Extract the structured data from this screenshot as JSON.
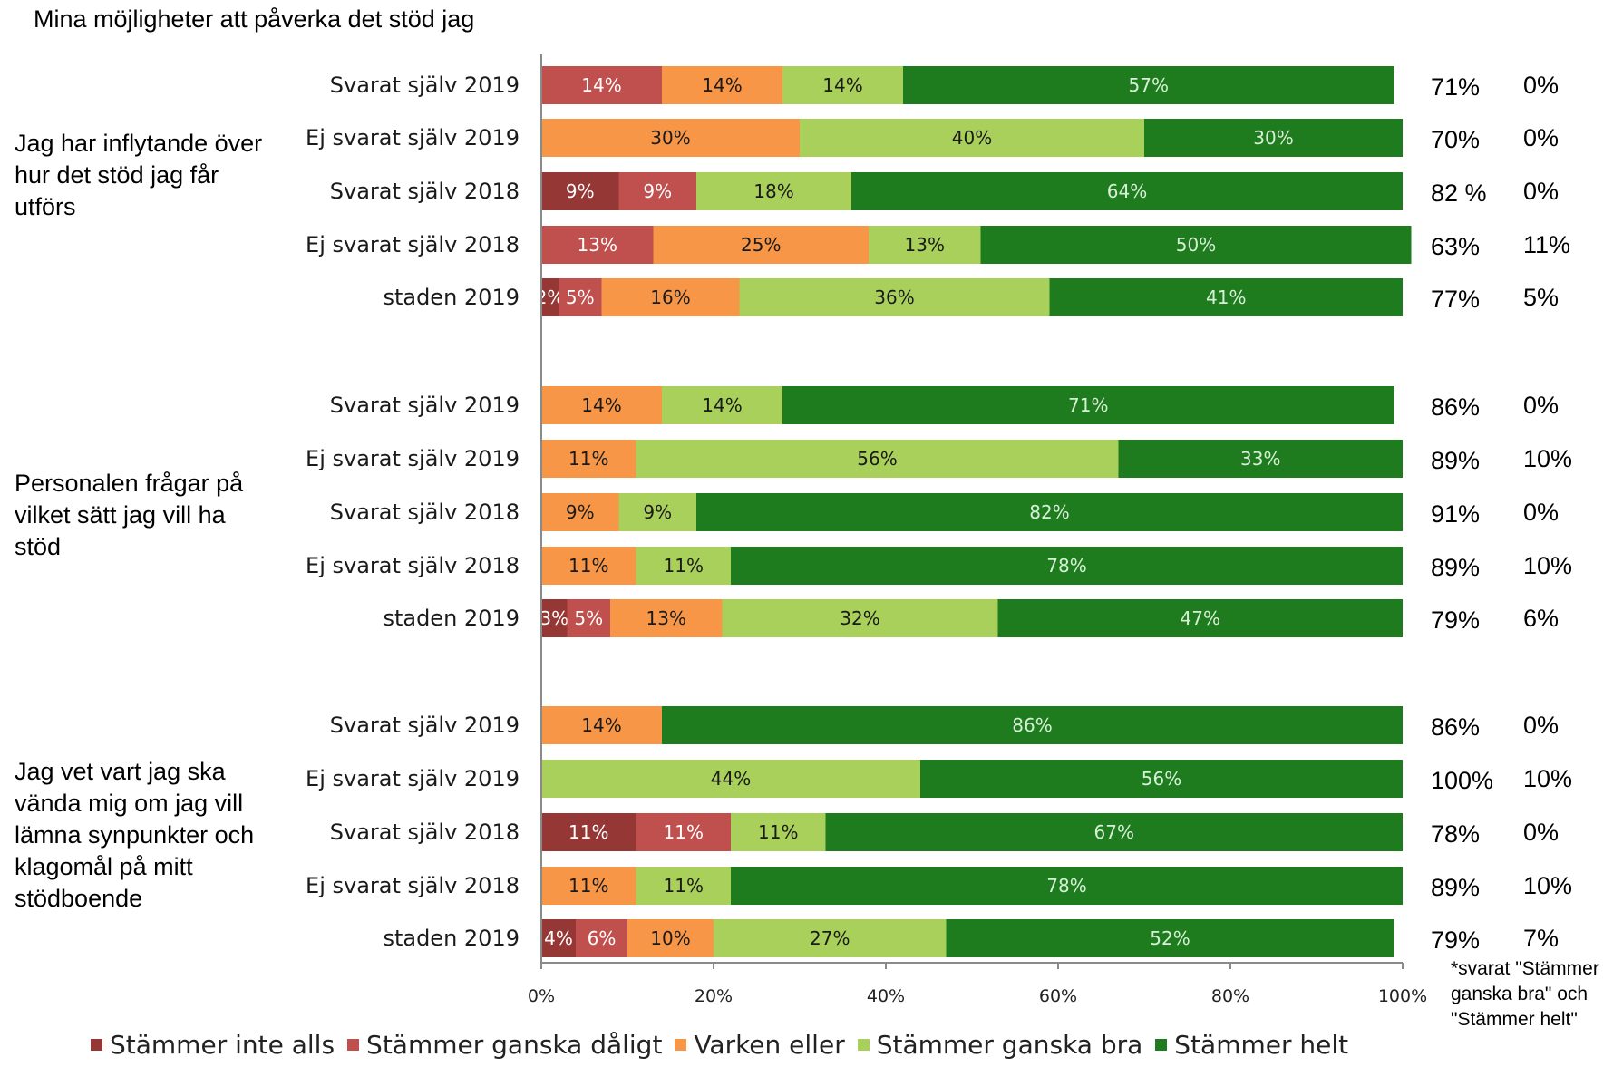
{
  "chart_data": {
    "type": "bar",
    "orientation": "horizontal-stacked",
    "title": "Mina möjligheter att påverka det stöd jag",
    "xlim": [
      0,
      100
    ],
    "x_ticks": [
      "0%",
      "20%",
      "40%",
      "60%",
      "80%",
      "100%"
    ],
    "legend_position": "bottom",
    "series": [
      {
        "name": "Stämmer inte alls",
        "color": "#953735"
      },
      {
        "name": "Stämmer ganska dåligt",
        "color": "#c0504d"
      },
      {
        "name": "Varken eller",
        "color": "#f79646"
      },
      {
        "name": "Stämmer ganska bra",
        "color": "#a9d05a"
      },
      {
        "name": "Stämmer helt",
        "color": "#1e7b1e"
      }
    ],
    "groups": [
      {
        "label": "Jag har inflytande över hur det stöd jag får utförs",
        "bars": [
          {
            "label": "Svarat själv 2019",
            "values": [
              0,
              14,
              14,
              14,
              57
            ],
            "value_labels": [
              "",
              "14%",
              "14%",
              "14%",
              "57%"
            ],
            "col1": "71%",
            "col2": "0%"
          },
          {
            "label": "Ej svarat själv 2019",
            "values": [
              0,
              0,
              30,
              40,
              30
            ],
            "value_labels": [
              "",
              "",
              "30%",
              "40%",
              "30%"
            ],
            "col1": "70%",
            "col2": "0%"
          },
          {
            "label": "Svarat själv 2018",
            "values": [
              9,
              9,
              0,
              18,
              64
            ],
            "value_labels": [
              "9%",
              "9%",
              "",
              "18%",
              "64%"
            ],
            "col1": "82 %",
            "col2": "0%"
          },
          {
            "label": "Ej svarat själv 2018",
            "values": [
              0,
              13,
              25,
              13,
              50
            ],
            "value_labels": [
              "",
              "13%",
              "25%",
              "13%",
              "50%"
            ],
            "col1": "63%",
            "col2": "11%"
          },
          {
            "label": "staden 2019",
            "values": [
              2,
              5,
              16,
              36,
              41
            ],
            "value_labels": [
              "2%",
              "5%",
              "16%",
              "36%",
              "41%"
            ],
            "col1": "77%",
            "col2": "5%"
          }
        ]
      },
      {
        "label": "Personalen frågar på vilket sätt jag vill ha stöd",
        "bars": [
          {
            "label": "Svarat själv 2019",
            "values": [
              0,
              0,
              14,
              14,
              71
            ],
            "value_labels": [
              "",
              "",
              "14%",
              "14%",
              "71%"
            ],
            "col1": "86%",
            "col2": "0%"
          },
          {
            "label": "Ej svarat själv 2019",
            "values": [
              0,
              0,
              11,
              56,
              33
            ],
            "value_labels": [
              "",
              "",
              "11%",
              "56%",
              "33%"
            ],
            "col1": "89%",
            "col2": "10%"
          },
          {
            "label": "Svarat själv 2018",
            "values": [
              0,
              0,
              9,
              9,
              82
            ],
            "value_labels": [
              "",
              "",
              "9%",
              "9%",
              "82%"
            ],
            "col1": "91%",
            "col2": "0%"
          },
          {
            "label": "Ej svarat själv 2018",
            "values": [
              0,
              0,
              11,
              11,
              78
            ],
            "value_labels": [
              "",
              "",
              "11%",
              "11%",
              "78%"
            ],
            "col1": "89%",
            "col2": "10%"
          },
          {
            "label": "staden 2019",
            "values": [
              3,
              5,
              13,
              32,
              47
            ],
            "value_labels": [
              "3%",
              "5%",
              "13%",
              "32%",
              "47%"
            ],
            "col1": "79%",
            "col2": "6%"
          }
        ]
      },
      {
        "label": "Jag vet vart jag ska vända mig om jag vill lämna synpunkter och klagomål på mitt stödboende",
        "bars": [
          {
            "label": "Svarat själv 2019",
            "values": [
              0,
              0,
              14,
              0,
              86
            ],
            "value_labels": [
              "",
              "",
              "14%",
              "",
              "86%"
            ],
            "col1": "86%",
            "col2": "0%"
          },
          {
            "label": "Ej svarat själv 2019",
            "values": [
              0,
              0,
              0,
              44,
              56
            ],
            "value_labels": [
              "",
              "",
              "",
              "44%",
              "56%"
            ],
            "col1": "100%",
            "col2": "10%"
          },
          {
            "label": "Svarat själv 2018",
            "values": [
              11,
              11,
              0,
              11,
              67
            ],
            "value_labels": [
              "11%",
              "11%",
              "",
              "11%",
              "67%"
            ],
            "col1": "78%",
            "col2": "0%"
          },
          {
            "label": "Ej svarat själv 2018",
            "values": [
              0,
              0,
              11,
              11,
              78
            ],
            "value_labels": [
              "",
              "",
              "11%",
              "11%",
              "78%"
            ],
            "col1": "89%",
            "col2": "10%"
          },
          {
            "label": "staden 2019",
            "values": [
              4,
              6,
              10,
              27,
              52
            ],
            "value_labels": [
              "4%",
              "6%",
              "10%",
              "27%",
              "52%"
            ],
            "col1": "79%",
            "col2": "7%"
          }
        ]
      }
    ],
    "footnote": "*svarat \"Stämmer ganska bra\" och \"Stämmer helt\""
  }
}
